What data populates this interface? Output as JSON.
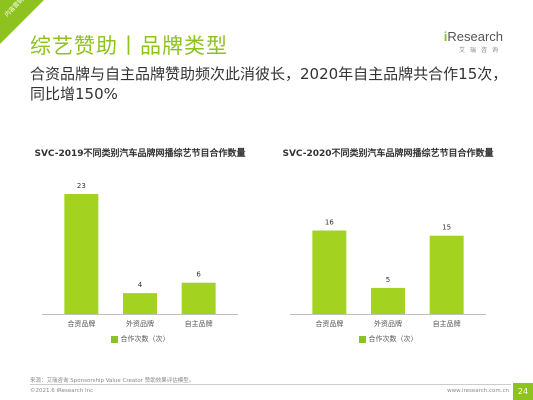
{
  "corner_label": "内容营销",
  "section_title": "综艺赞助丨品牌类型",
  "logo": {
    "main_prefix": "i",
    "main_rest": "Research",
    "sub": "艾瑞咨询"
  },
  "headline": "合资品牌与自主品牌赞助频次此消彼长，2020年自主品牌共合作15次，同比增150%",
  "colors": {
    "accent": "#8dc21f",
    "bar": "#a3d320"
  },
  "chart_data": [
    {
      "type": "bar",
      "title": "SVC-2019不同类别汽车品牌网播综艺节目合作数量",
      "categories": [
        "合资品牌",
        "外资品牌",
        "自主品牌"
      ],
      "values": [
        23,
        4,
        6
      ],
      "series": [
        {
          "name": "合作次数（次）",
          "values": [
            23,
            4,
            6
          ]
        }
      ],
      "ylim": [
        0,
        23
      ],
      "grid": false,
      "legend": "bottom"
    },
    {
      "type": "bar",
      "title": "SVC-2020不同类别汽车品牌网播综艺节目合作数量",
      "categories": [
        "合资品牌",
        "外资品牌",
        "自主品牌"
      ],
      "values": [
        16,
        5,
        15
      ],
      "series": [
        {
          "name": "合作次数（次）",
          "values": [
            16,
            5,
            15
          ]
        }
      ],
      "ylim": [
        0,
        23
      ],
      "grid": false,
      "legend": "bottom"
    }
  ],
  "footer": {
    "source": "来源：艾瑞咨询 Sponsorship Value Creator 赞助效果评估模型。",
    "copyright": "©2021.6 iResearch Inc",
    "url": "www.iresearch.com.cn",
    "page": "24"
  }
}
